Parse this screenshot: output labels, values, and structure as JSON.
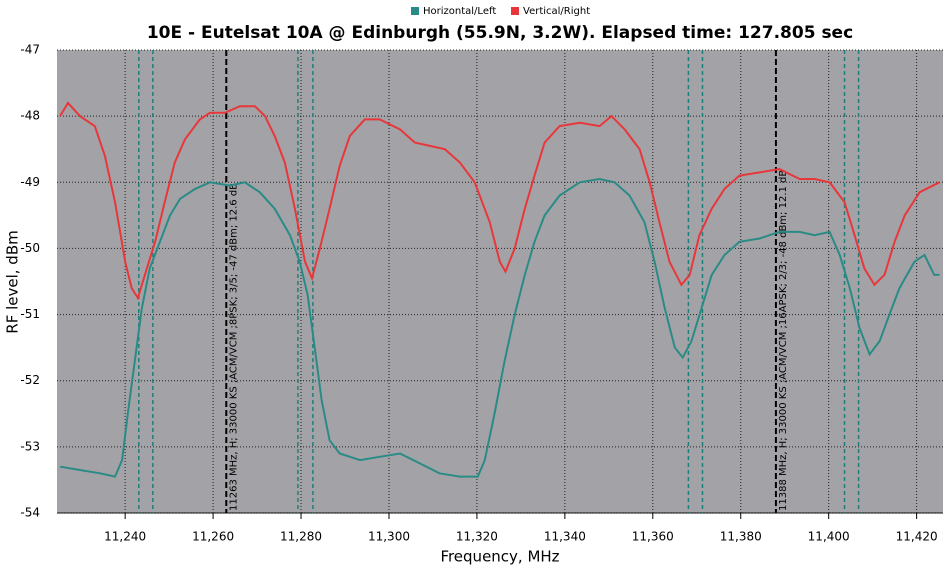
{
  "chart_data": {
    "type": "line",
    "title": "10E - Eutelsat 10A @ Edinburgh (55.9N, 3.2W). Elapsed time: 127.805 sec",
    "xlabel": "Frequency, MHz",
    "ylabel": "RF level, dBm",
    "xlim": [
      11224.5,
      11426
    ],
    "ylim": [
      -54,
      -47
    ],
    "xticks": [
      {
        "value": 11240,
        "label": "11,240"
      },
      {
        "value": 11260,
        "label": "11,260"
      },
      {
        "value": 11280,
        "label": "11,280"
      },
      {
        "value": 11300,
        "label": "11,300"
      },
      {
        "value": 11320,
        "label": "11,320"
      },
      {
        "value": 11340,
        "label": "11,340"
      },
      {
        "value": 11360,
        "label": "11,360"
      },
      {
        "value": 11380,
        "label": "11,380"
      },
      {
        "value": 11400,
        "label": "11,400"
      },
      {
        "value": 11420,
        "label": "11,420"
      }
    ],
    "yticks": [
      -54,
      -53,
      -52,
      -51,
      -50,
      -49,
      -48,
      -47
    ],
    "grid": true,
    "legend": "top",
    "series": [
      {
        "name": "Horizontal/Left",
        "color": "#2a8b86",
        "x": [
          11225.2,
          11229.7,
          11234.3,
          11237.7,
          11239.3,
          11240.6,
          11242.2,
          11243.8,
          11245.6,
          11247.9,
          11250.2,
          11252.5,
          11255.9,
          11259.3,
          11263.8,
          11267.2,
          11270.6,
          11274.0,
          11277.5,
          11279.7,
          11281.5,
          11283.1,
          11284.7,
          11286.5,
          11288.8,
          11293.4,
          11297.9,
          11302.5,
          11307.0,
          11311.5,
          11316.1,
          11320.2,
          11321.8,
          11324.0,
          11326.3,
          11328.6,
          11330.9,
          11333.1,
          11335.4,
          11338.8,
          11343.4,
          11347.9,
          11351.3,
          11354.7,
          11358.1,
          11360.4,
          11362.7,
          11365.0,
          11366.8,
          11368.8,
          11371.1,
          11373.4,
          11376.3,
          11379.7,
          11384.3,
          11388.8,
          11393.4,
          11396.8,
          11400.2,
          11402.5,
          11404.8,
          11407.0,
          11409.3,
          11411.6,
          11413.8,
          11416.1,
          11419.5,
          11421.8,
          11424.0,
          11425.2
        ],
        "values": [
          -53.3,
          -53.35,
          -53.4,
          -53.45,
          -53.2,
          -52.5,
          -51.7,
          -50.9,
          -50.3,
          -49.9,
          -49.5,
          -49.25,
          -49.1,
          -49.0,
          -49.05,
          -49.0,
          -49.15,
          -49.4,
          -49.8,
          -50.2,
          -50.7,
          -51.5,
          -52.3,
          -52.9,
          -53.1,
          -53.2,
          -53.15,
          -53.1,
          -53.25,
          -53.4,
          -53.45,
          -53.45,
          -53.2,
          -52.5,
          -51.7,
          -51.0,
          -50.4,
          -49.9,
          -49.5,
          -49.2,
          -49.0,
          -48.95,
          -49.0,
          -49.2,
          -49.6,
          -50.2,
          -50.9,
          -51.5,
          -51.65,
          -51.4,
          -50.9,
          -50.4,
          -50.1,
          -49.9,
          -49.85,
          -49.75,
          -49.75,
          -49.8,
          -49.75,
          -50.1,
          -50.6,
          -51.2,
          -51.6,
          -51.4,
          -51.0,
          -50.6,
          -50.2,
          -50.1,
          -50.4,
          -50.4
        ]
      },
      {
        "name": "Vertical/Right",
        "color": "#e8373a",
        "x": [
          11225.2,
          11227.0,
          11229.7,
          11233.1,
          11235.4,
          11237.7,
          11240.0,
          11241.5,
          11242.9,
          11244.5,
          11246.8,
          11249.0,
          11251.3,
          11253.6,
          11257.0,
          11259.3,
          11262.7,
          11266.1,
          11269.5,
          11271.8,
          11274.0,
          11276.3,
          11278.6,
          11280.9,
          11282.5,
          11284.3,
          11286.5,
          11288.8,
          11291.1,
          11294.5,
          11297.9,
          11302.5,
          11305.9,
          11309.3,
          11312.7,
          11316.1,
          11319.5,
          11322.9,
          11325.2,
          11326.5,
          11328.6,
          11330.9,
          11333.1,
          11335.4,
          11338.8,
          11343.4,
          11347.9,
          11350.6,
          11353.6,
          11357.0,
          11359.3,
          11361.5,
          11363.8,
          11366.5,
          11368.4,
          11370.6,
          11373.4,
          11376.3,
          11379.7,
          11384.3,
          11388.8,
          11393.4,
          11396.8,
          11400.2,
          11403.6,
          11405.9,
          11408.1,
          11410.4,
          11412.7,
          11415.0,
          11417.3,
          11420.7,
          11425.2
        ],
        "values": [
          -48.0,
          -47.8,
          -48.0,
          -48.15,
          -48.6,
          -49.3,
          -50.2,
          -50.6,
          -50.75,
          -50.4,
          -49.9,
          -49.3,
          -48.7,
          -48.35,
          -48.05,
          -47.95,
          -47.95,
          -47.85,
          -47.85,
          -48.0,
          -48.3,
          -48.7,
          -49.4,
          -50.2,
          -50.45,
          -50.0,
          -49.4,
          -48.75,
          -48.3,
          -48.05,
          -48.05,
          -48.2,
          -48.4,
          -48.45,
          -48.5,
          -48.7,
          -49.0,
          -49.6,
          -50.2,
          -50.35,
          -50.0,
          -49.4,
          -48.9,
          -48.4,
          -48.15,
          -48.1,
          -48.15,
          -48.0,
          -48.2,
          -48.5,
          -49.0,
          -49.6,
          -50.2,
          -50.55,
          -50.4,
          -49.8,
          -49.4,
          -49.1,
          -48.9,
          -48.85,
          -48.8,
          -48.95,
          -48.95,
          -49.0,
          -49.3,
          -49.8,
          -50.3,
          -50.55,
          -50.4,
          -49.9,
          -49.5,
          -49.15,
          -49.0
        ]
      }
    ],
    "band_edges": [
      11243.1,
      11246.3,
      11279.3,
      11282.7,
      11368.1,
      11371.3,
      11403.6,
      11406.8
    ],
    "markers": [
      {
        "x": 11263,
        "label": "11263 MHz, H; 33000 KS ;ACM/VCM ;8PSK; 3/5; -47 dBm; 12.6 dB"
      },
      {
        "x": 11388,
        "label": "11388 MHz, H; 33000 KS ;ACM/VCM ;16APSK; 2/3; -48 dBm; 12.1 dB"
      }
    ]
  }
}
